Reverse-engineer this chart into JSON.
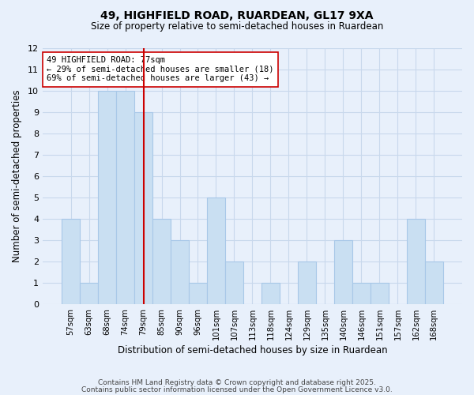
{
  "title": "49, HIGHFIELD ROAD, RUARDEAN, GL17 9XA",
  "subtitle": "Size of property relative to semi-detached houses in Ruardean",
  "xlabel": "Distribution of semi-detached houses by size in Ruardean",
  "ylabel": "Number of semi-detached properties",
  "bar_labels": [
    "57sqm",
    "63sqm",
    "68sqm",
    "74sqm",
    "79sqm",
    "85sqm",
    "90sqm",
    "96sqm",
    "101sqm",
    "107sqm",
    "113sqm",
    "118sqm",
    "124sqm",
    "129sqm",
    "135sqm",
    "140sqm",
    "146sqm",
    "151sqm",
    "157sqm",
    "162sqm",
    "168sqm"
  ],
  "bar_values": [
    4,
    1,
    10,
    10,
    9,
    4,
    3,
    1,
    5,
    2,
    0,
    1,
    0,
    2,
    0,
    3,
    1,
    1,
    0,
    4,
    2
  ],
  "bar_color": "#c9dff2",
  "bar_edge_color": "#a8c8e8",
  "grid_color": "#c8d8ec",
  "background_color": "#e8f0fb",
  "vline_color": "#cc0000",
  "vline_index": 4,
  "annotation_text": "49 HIGHFIELD ROAD: 77sqm\n← 29% of semi-detached houses are smaller (18)\n69% of semi-detached houses are larger (43) →",
  "annotation_box_color": "white",
  "annotation_box_edge": "#cc0000",
  "ylim": [
    0,
    12
  ],
  "footer1": "Contains HM Land Registry data © Crown copyright and database right 2025.",
  "footer2": "Contains public sector information licensed under the Open Government Licence v3.0."
}
